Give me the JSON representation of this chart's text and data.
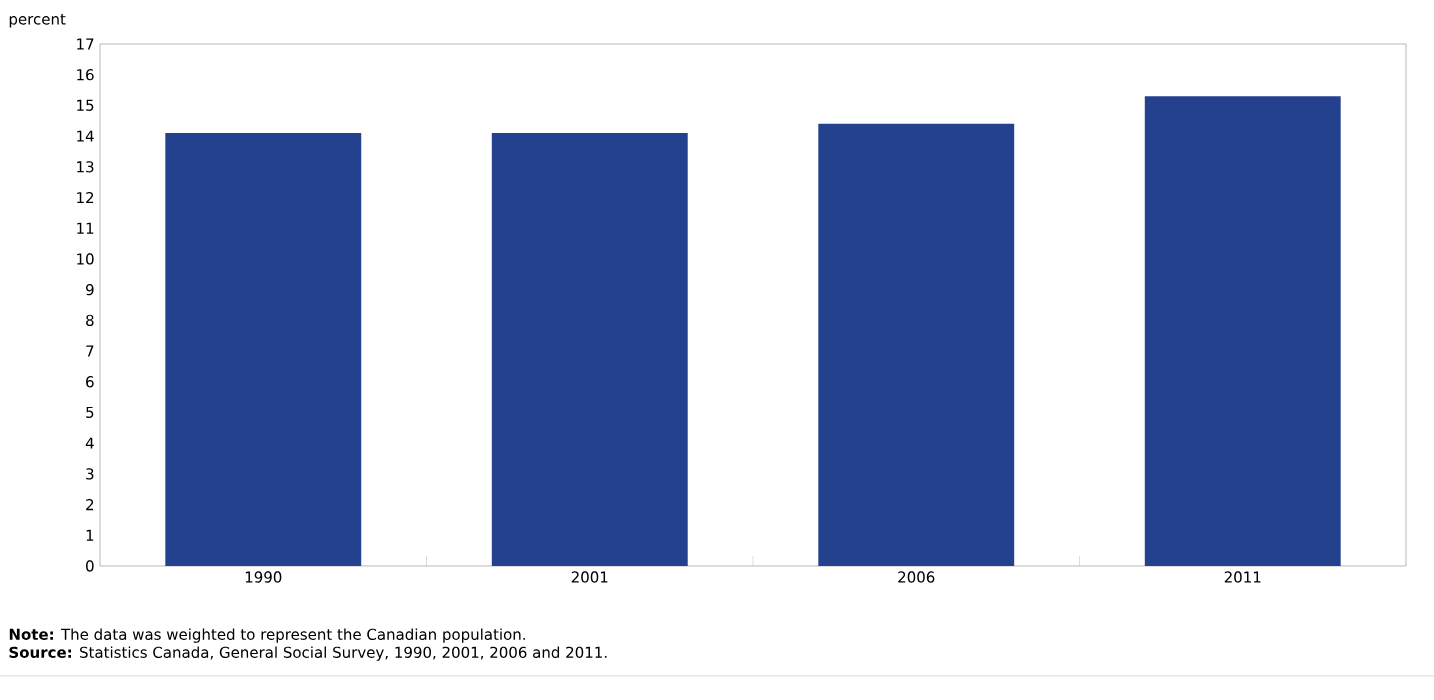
{
  "chart_data": {
    "type": "bar",
    "ylabel": "percent",
    "categories": [
      "1990",
      "2001",
      "2006",
      "2011"
    ],
    "values": [
      14.1,
      14.1,
      14.4,
      15.3
    ],
    "color": "#24418f",
    "ylim": [
      0,
      17
    ],
    "yticks": [
      0,
      1,
      2,
      3,
      4,
      5,
      6,
      7,
      8,
      9,
      10,
      11,
      12,
      13,
      14,
      15,
      16,
      17
    ],
    "grid": false,
    "annotations": [
      "**Note:** The data was weighted to represent the Canadian population.",
      "**Source:** Statistics Canada, General Social Survey, 1990, 2001, 2006 and 2011."
    ]
  }
}
